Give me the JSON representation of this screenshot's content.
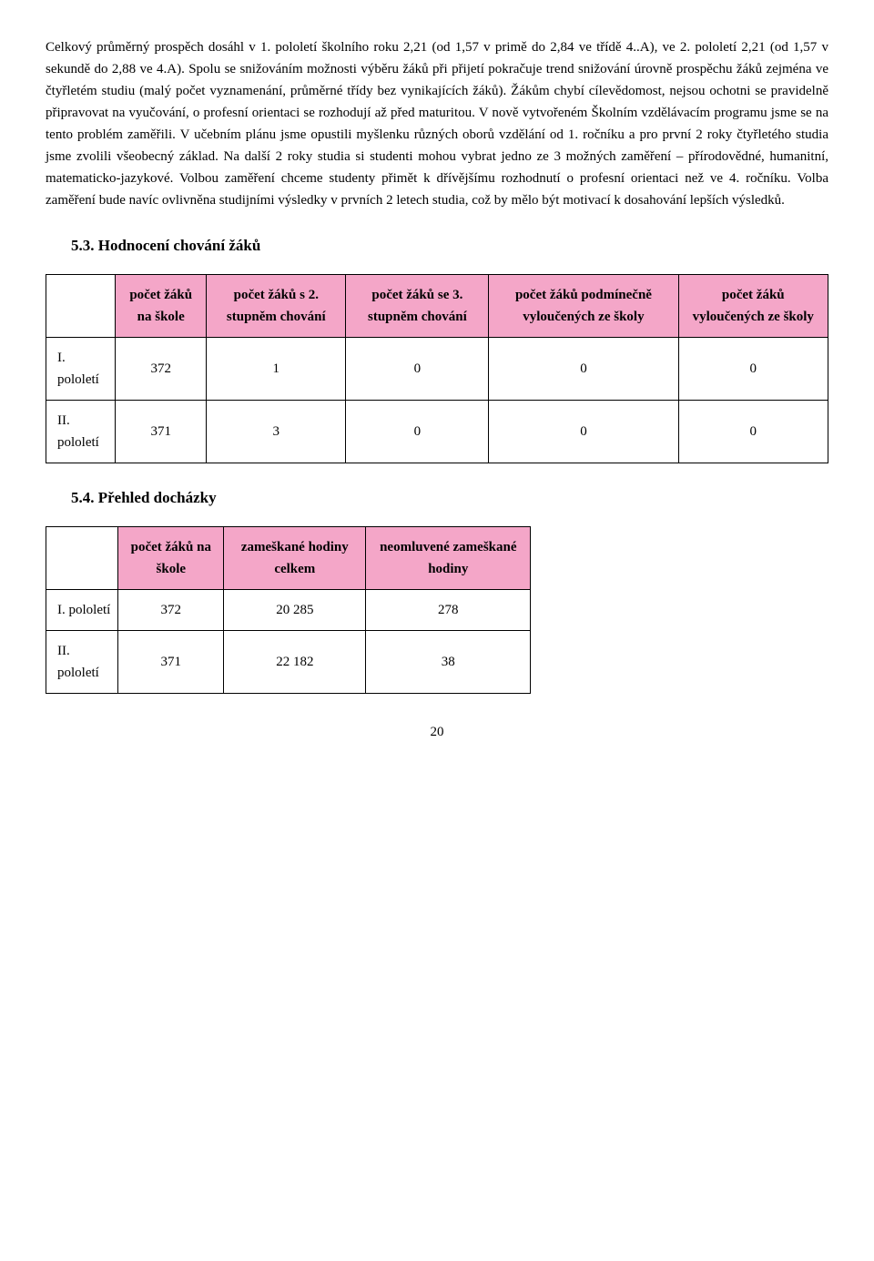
{
  "paragraph": "Celkový průměrný prospěch dosáhl v 1. pololetí školního roku 2,21 (od 1,57 v primě do 2,84 ve třídě 4..A), ve 2. pololetí 2,21 (od 1,57 v sekundě do 2,88 ve 4.A). Spolu se snižováním možnosti výběru žáků při přijetí pokračuje trend snižování úrovně prospěchu žáků zejména ve čtyřletém studiu (malý počet vyznamenání, průměrné třídy bez vynikajících žáků). Žákům chybí cílevědomost, nejsou ochotni se pravidelně připravovat na vyučování, o profesní orientaci se rozhodují až před maturitou. V nově vytvořeném Školním vzdělávacím programu jsme se na tento problém zaměřili. V učebním plánu jsme opustili myšlenku různých oborů vzdělání od 1. ročníku a pro první 2 roky čtyřletého studia jsme zvolili všeobecný základ. Na další 2 roky studia si studenti mohou vybrat jedno ze 3 možných zaměření – přírodovědné, humanitní, matematicko-jazykové. Volbou zaměření chceme studenty přimět k dřívějšímu rozhodnutí o profesní orientaci než ve 4. ročníku. Volba zaměření bude navíc ovlivněna studijními výsledky v prvních 2 letech studia, což by mělo být motivací k dosahování lepších výsledků.",
  "section53": {
    "title": "5.3. Hodnocení chování žáků",
    "headers": [
      "počet žáků na škole",
      "počet žáků s 2. stupněm chování",
      "počet žáků se 3. stupněm chování",
      "počet žáků podmínečně vyloučených ze školy",
      "počet žáků vyloučených ze školy"
    ],
    "rows": [
      {
        "label": "I. pololetí",
        "values": [
          "372",
          "1",
          "0",
          "0",
          "0"
        ]
      },
      {
        "label": "II. pololetí",
        "values": [
          "371",
          "3",
          "0",
          "0",
          "0"
        ]
      }
    ]
  },
  "section54": {
    "title": "5.4. Přehled docházky",
    "headers": [
      "počet žáků na škole",
      "zameškané hodiny celkem",
      "neomluvené zameškané hodiny"
    ],
    "rows": [
      {
        "label": "I. pololetí",
        "values": [
          "372",
          "20 285",
          "278"
        ]
      },
      {
        "label": "II. pololetí",
        "values": [
          "371",
          "22 182",
          "38"
        ]
      }
    ]
  },
  "pageNumber": "20",
  "colors": {
    "headerBg": "#f4a6c8",
    "border": "#000000",
    "text": "#000000",
    "bg": "#ffffff"
  }
}
